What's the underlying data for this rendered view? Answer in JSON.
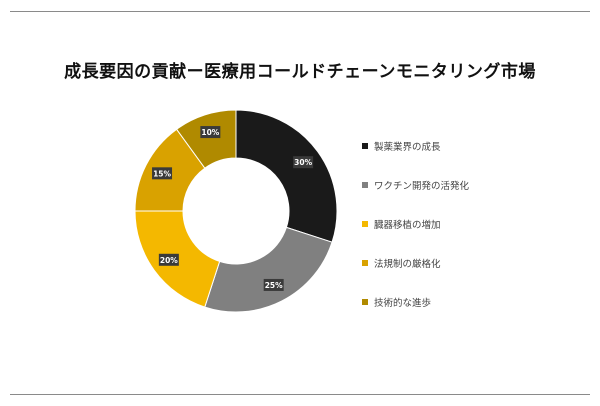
{
  "page": {
    "title": "成長要因の貢献ー医療用コールドチェーンモニタリング市場"
  },
  "chart_data": {
    "type": "pie",
    "style": "donut",
    "title": "成長要因の貢献ー医療用コールドチェーンモニタリング市場",
    "legend_position": "right",
    "slices": [
      {
        "label": "製薬業界の成長",
        "value": 30,
        "display": "30%",
        "color": "#1a1a1a"
      },
      {
        "label": "ワクチン開発の活発化",
        "value": 25,
        "display": "25%",
        "color": "#808080"
      },
      {
        "label": "臓器移植の増加",
        "value": 20,
        "display": "20%",
        "color": "#f4b800"
      },
      {
        "label": "法規制の厳格化",
        "value": 15,
        "display": "15%",
        "color": "#d9a200"
      },
      {
        "label": "技術的な進歩",
        "value": 10,
        "display": "10%",
        "color": "#b08a00"
      }
    ]
  }
}
